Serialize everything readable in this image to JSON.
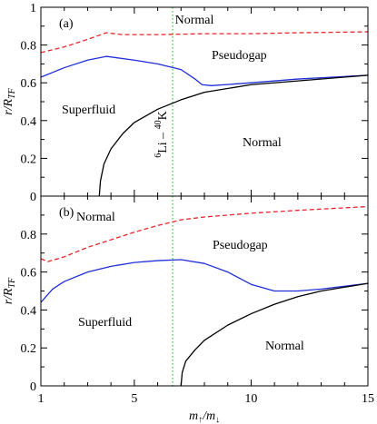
{
  "chart_data": [
    {
      "panel_label": "(a)",
      "type": "line",
      "xlim": [
        1,
        15
      ],
      "ylim": [
        0,
        1
      ],
      "xticks": [
        1,
        5,
        10,
        15
      ],
      "yticks": [
        0,
        0.2,
        0.4,
        0.6,
        0.8,
        1
      ],
      "ytick_labels": [
        "0",
        "0.2",
        "0.4",
        "0.6",
        "0.8",
        "1"
      ],
      "ylabel": "r/R",
      "ylabel_sub": "TF",
      "annotations": {
        "top_normal": "Normal",
        "pseudogap": "Pseudogap",
        "superfluid": "Superfluid",
        "bottom_normal": "Normal",
        "vline_label_sup1": "6",
        "vline_label_mid": "Li – ",
        "vline_label_sup2": "40",
        "vline_label_end": "K"
      },
      "vline_x": 6.64,
      "series": [
        {
          "style": "dashed",
          "color": "#e8262b",
          "x": [
            1,
            2,
            3,
            3.8,
            4.5,
            6,
            8,
            10,
            12,
            15
          ],
          "y": [
            0.76,
            0.79,
            0.83,
            0.865,
            0.855,
            0.855,
            0.86,
            0.86,
            0.865,
            0.87
          ]
        },
        {
          "style": "solid",
          "color": "#1f2ed6",
          "x": [
            1,
            2,
            3,
            3.8,
            5,
            6,
            7,
            7.6,
            7.9,
            8.3,
            10,
            12,
            15
          ],
          "y": [
            0.63,
            0.68,
            0.72,
            0.74,
            0.72,
            0.7,
            0.67,
            0.62,
            0.59,
            0.585,
            0.6,
            0.62,
            0.64
          ]
        },
        {
          "style": "solid",
          "color": "#000000",
          "x": [
            3.5,
            3.55,
            3.7,
            4.0,
            4.5,
            5,
            6,
            7,
            8,
            10,
            12,
            15
          ],
          "y": [
            0,
            0.08,
            0.17,
            0.25,
            0.33,
            0.39,
            0.46,
            0.51,
            0.55,
            0.59,
            0.61,
            0.64
          ]
        }
      ]
    },
    {
      "panel_label": "(b)",
      "type": "line",
      "xlim": [
        1,
        15
      ],
      "ylim": [
        0,
        1
      ],
      "xticks": [
        1,
        5,
        10,
        15
      ],
      "xtick_labels": [
        "1",
        "5",
        "10",
        "15"
      ],
      "yticks": [
        0,
        0.2,
        0.4,
        0.6,
        0.8
      ],
      "ytick_labels": [
        "0",
        "0.2",
        "0.4",
        "0.6",
        "0.8"
      ],
      "ylabel": "r/R",
      "ylabel_sub": "TF",
      "xlabel_m1": "m",
      "xlabel_sub1": "↑",
      "xlabel_slash": "/m",
      "xlabel_sub2": "↓",
      "annotations": {
        "top_normal": "Normal",
        "pseudogap": "Pseudogap",
        "superfluid": "Superfluid",
        "bottom_normal": "Normal"
      },
      "vline_x": 6.64,
      "series": [
        {
          "style": "dashed",
          "color": "#e8262b",
          "x": [
            1,
            1.3,
            2,
            3,
            4,
            5,
            6,
            7,
            8,
            10,
            12,
            15
          ],
          "y": [
            0.67,
            0.655,
            0.68,
            0.73,
            0.77,
            0.81,
            0.845,
            0.875,
            0.89,
            0.91,
            0.925,
            0.945
          ]
        },
        {
          "style": "solid",
          "color": "#1f2ed6",
          "x": [
            1,
            1.5,
            2,
            3,
            4,
            5,
            6,
            7,
            8,
            9,
            10,
            11,
            12,
            13,
            15
          ],
          "y": [
            0.44,
            0.51,
            0.55,
            0.6,
            0.63,
            0.65,
            0.66,
            0.665,
            0.645,
            0.6,
            0.535,
            0.5,
            0.5,
            0.51,
            0.54
          ]
        },
        {
          "style": "solid",
          "color": "#000000",
          "x": [
            7.0,
            7.05,
            7.2,
            7.6,
            8,
            9,
            10,
            11,
            12,
            13,
            15
          ],
          "y": [
            0,
            0.07,
            0.13,
            0.19,
            0.24,
            0.32,
            0.38,
            0.43,
            0.47,
            0.5,
            0.54
          ]
        }
      ]
    }
  ]
}
